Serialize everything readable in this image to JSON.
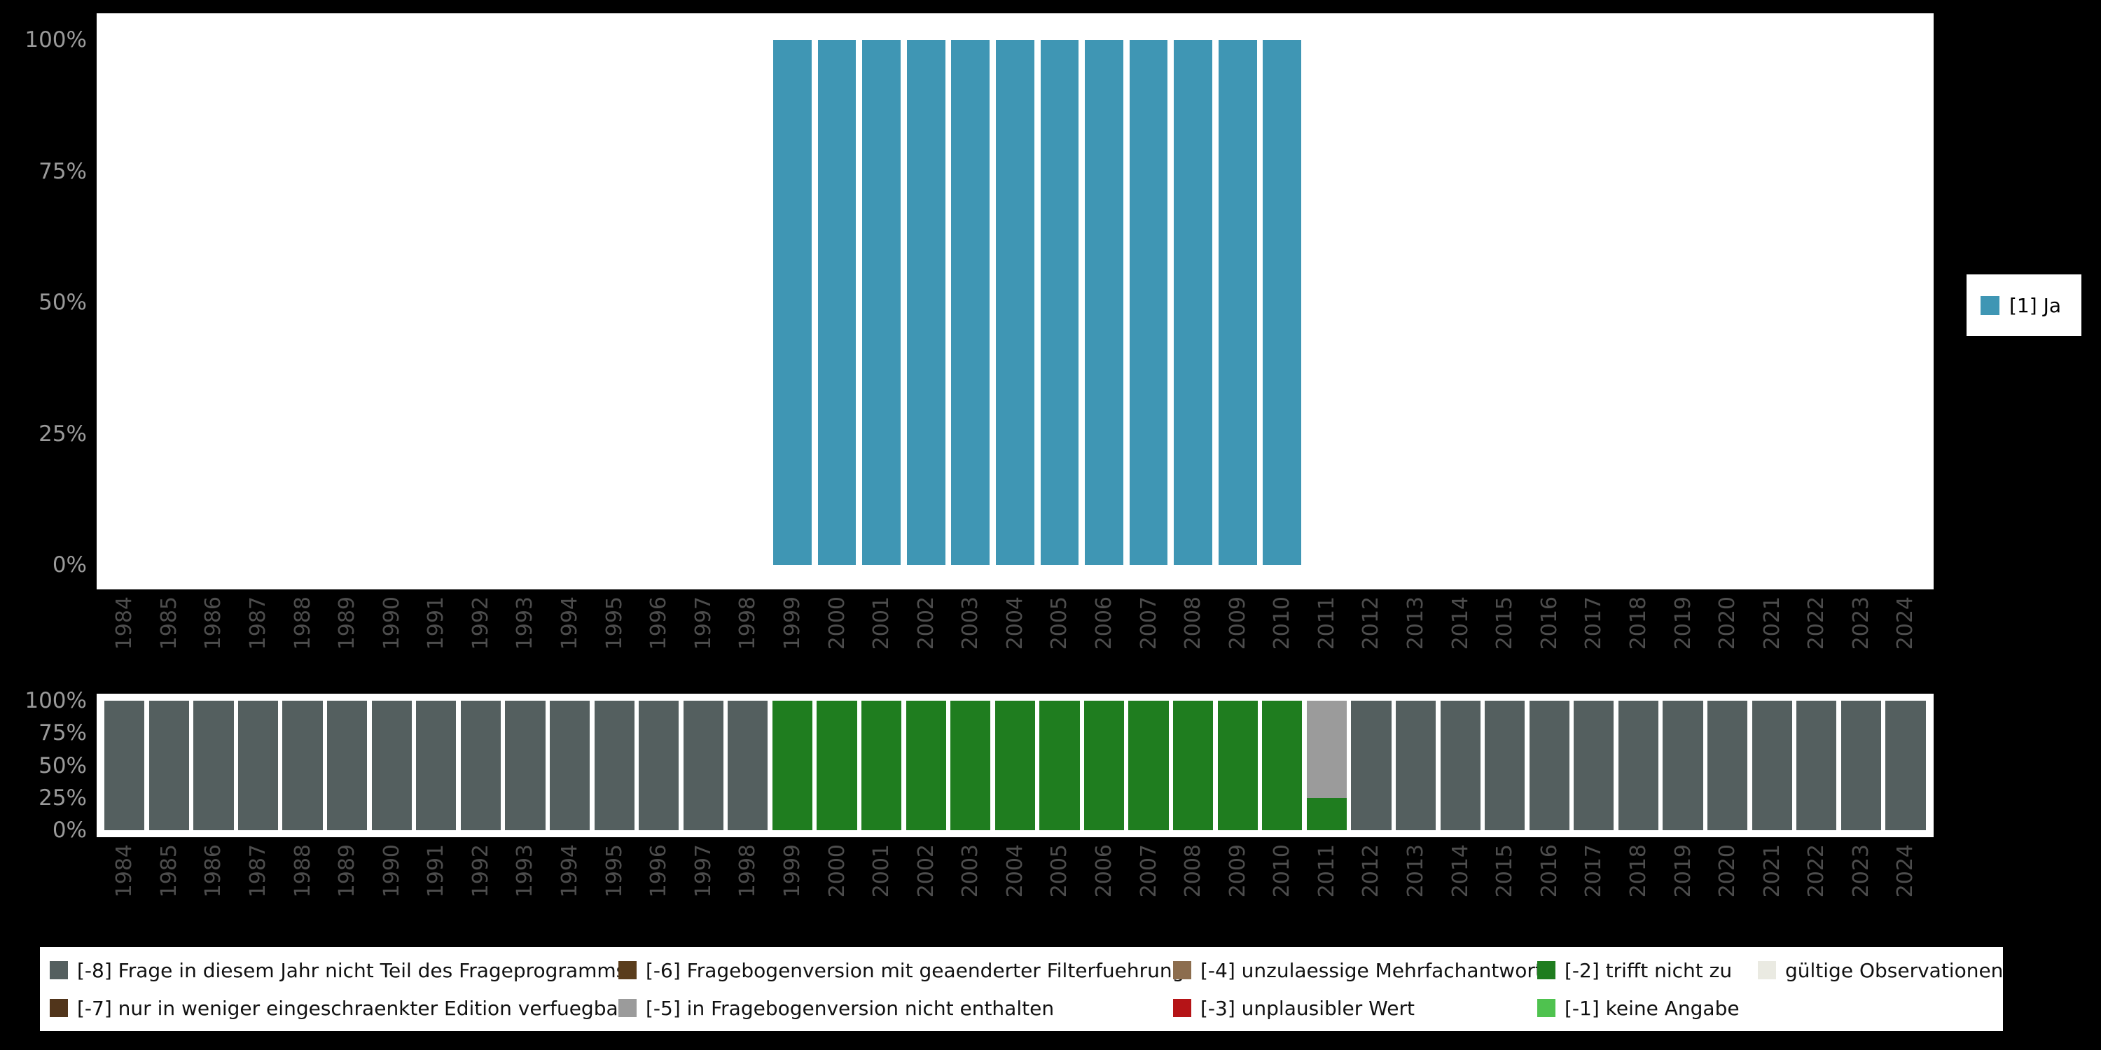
{
  "colors": {
    "page_bg": "#000000",
    "panel_bg": "#ffffff",
    "ytick_text": "#9a9a9a",
    "xtick_text": "#4d4d4d"
  },
  "code_colors": {
    "[1]": "#3f96b4",
    "[-8]": "#545f5f",
    "[-7]": "#51351b",
    "[-6]": "#5a3d1c",
    "[-5]": "#9b9b9b",
    "[-4]": "#8c6d4e",
    "[-3]": "#b51417",
    "[-2]": "#1f7d1f",
    "[-1]": "#4fc24f",
    "valid": "#eaeae2"
  },
  "years": [
    "1984",
    "1985",
    "1986",
    "1987",
    "1988",
    "1989",
    "1990",
    "1991",
    "1992",
    "1993",
    "1994",
    "1995",
    "1996",
    "1997",
    "1998",
    "1999",
    "2000",
    "2001",
    "2002",
    "2003",
    "2004",
    "2005",
    "2006",
    "2007",
    "2008",
    "2009",
    "2010",
    "2011",
    "2012",
    "2013",
    "2014",
    "2015",
    "2016",
    "2017",
    "2018",
    "2019",
    "2020",
    "2021",
    "2022",
    "2023",
    "2024"
  ],
  "y_ticks": [
    "100%",
    "75%",
    "50%",
    "25%",
    "0%"
  ],
  "top_legend": {
    "label": "[1] Ja",
    "code": "[1]"
  },
  "bottom_legend": {
    "rows": [
      [
        {
          "code": "[-8]",
          "label": "[-8] Frage in diesem Jahr nicht Teil des Frageprogramms"
        },
        {
          "code": "[-6]",
          "label": "[-6] Fragebogenversion mit geaenderter Filterfuehrung"
        },
        {
          "code": "[-4]",
          "label": "[-4] unzulaessige Mehrfachantwort"
        },
        {
          "code": "[-2]",
          "label": "[-2] trifft nicht zu"
        },
        {
          "code": "valid",
          "label": "gültige Observationen"
        }
      ],
      [
        {
          "code": "[-7]",
          "label": "[-7] nur in weniger eingeschraenkter Edition verfuegbar"
        },
        {
          "code": "[-5]",
          "label": "[-5] in Fragebogenversion nicht enthalten"
        },
        {
          "code": "[-3]",
          "label": "[-3] unplausibler Wert"
        },
        {
          "code": "[-1]",
          "label": "[-1] keine Angabe"
        }
      ]
    ]
  },
  "chart_data": [
    {
      "type": "bar",
      "name": "answer-distribution-by-year",
      "title": "",
      "xlabel": "",
      "ylabel": "",
      "ylim": [
        0,
        100
      ],
      "yticks": [
        "0%",
        "25%",
        "50%",
        "75%",
        "100%"
      ],
      "legend_position": "right",
      "categories": [
        "1984",
        "1985",
        "1986",
        "1987",
        "1988",
        "1989",
        "1990",
        "1991",
        "1992",
        "1993",
        "1994",
        "1995",
        "1996",
        "1997",
        "1998",
        "1999",
        "2000",
        "2001",
        "2002",
        "2003",
        "2004",
        "2005",
        "2006",
        "2007",
        "2008",
        "2009",
        "2010",
        "2011",
        "2012",
        "2013",
        "2014",
        "2015",
        "2016",
        "2017",
        "2018",
        "2019",
        "2020",
        "2021",
        "2022",
        "2023",
        "2024"
      ],
      "series": [
        {
          "name": "[1] Ja",
          "code": "[1]",
          "values": [
            null,
            null,
            null,
            null,
            null,
            null,
            null,
            null,
            null,
            null,
            null,
            null,
            null,
            null,
            null,
            100,
            100,
            100,
            100,
            100,
            100,
            100,
            100,
            100,
            100,
            100,
            100,
            null,
            null,
            null,
            null,
            null,
            null,
            null,
            null,
            null,
            null,
            null,
            null,
            null,
            null
          ]
        }
      ]
    },
    {
      "type": "bar",
      "name": "missing-codes-by-year",
      "stacked": true,
      "title": "",
      "xlabel": "",
      "ylabel": "",
      "ylim": [
        0,
        100
      ],
      "yticks": [
        "0%",
        "25%",
        "50%",
        "75%",
        "100%"
      ],
      "legend_position": "bottom",
      "categories": [
        "1984",
        "1985",
        "1986",
        "1987",
        "1988",
        "1989",
        "1990",
        "1991",
        "1992",
        "1993",
        "1994",
        "1995",
        "1996",
        "1997",
        "1998",
        "1999",
        "2000",
        "2001",
        "2002",
        "2003",
        "2004",
        "2005",
        "2006",
        "2007",
        "2008",
        "2009",
        "2010",
        "2011",
        "2012",
        "2013",
        "2014",
        "2015",
        "2016",
        "2017",
        "2018",
        "2019",
        "2020",
        "2021",
        "2022",
        "2023",
        "2024"
      ],
      "series": [
        {
          "name": "[-8] Frage in diesem Jahr nicht Teil des Frageprogramms",
          "code": "[-8]",
          "values": [
            100,
            100,
            100,
            100,
            100,
            100,
            100,
            100,
            100,
            100,
            100,
            100,
            100,
            100,
            100,
            0,
            0,
            0,
            0,
            0,
            0,
            0,
            0,
            0,
            0,
            0,
            0,
            0,
            100,
            100,
            100,
            100,
            100,
            100,
            100,
            100,
            100,
            100,
            100,
            100,
            100
          ]
        },
        {
          "name": "[-5] in Fragebogenversion nicht enthalten",
          "code": "[-5]",
          "values": [
            0,
            0,
            0,
            0,
            0,
            0,
            0,
            0,
            0,
            0,
            0,
            0,
            0,
            0,
            0,
            0,
            0,
            0,
            0,
            0,
            0,
            0,
            0,
            0,
            0,
            0,
            0,
            75,
            0,
            0,
            0,
            0,
            0,
            0,
            0,
            0,
            0,
            0,
            0,
            0,
            0
          ]
        },
        {
          "name": "[-2] trifft nicht zu",
          "code": "[-2]",
          "values": [
            0,
            0,
            0,
            0,
            0,
            0,
            0,
            0,
            0,
            0,
            0,
            0,
            0,
            0,
            0,
            100,
            100,
            100,
            100,
            100,
            100,
            100,
            100,
            100,
            100,
            100,
            100,
            25,
            0,
            0,
            0,
            0,
            0,
            0,
            0,
            0,
            0,
            0,
            0,
            0,
            0
          ]
        }
      ]
    }
  ]
}
